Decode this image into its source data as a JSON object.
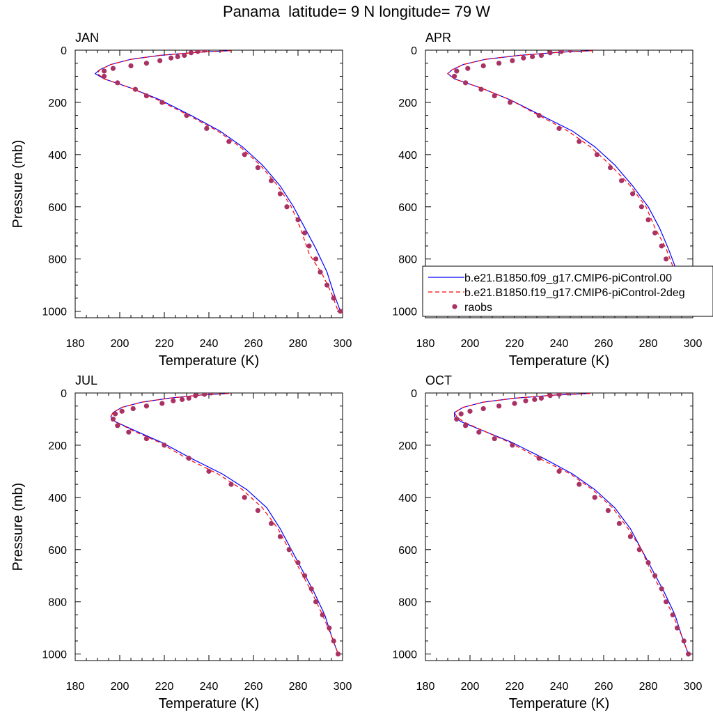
{
  "figure": {
    "title": "Panama  latitude= 9 N longitude= 79 W"
  },
  "chart_data": [
    {
      "type": "line",
      "panel_label": "JAN",
      "xlabel": "Temperature (K)",
      "ylabel": "Pressure (mb)",
      "xlim": [
        180,
        300
      ],
      "ylim": [
        1025,
        0
      ],
      "x_ticks": [
        180,
        200,
        220,
        240,
        260,
        280,
        300
      ],
      "y_ticks": [
        0,
        200,
        400,
        600,
        800,
        1000
      ],
      "series": [
        {
          "name": "b.e21.B1850.f09_g17.CMIP6-piControl.00",
          "style": "solid",
          "color": "#0000ff",
          "temperature": [
            250,
            235,
            218,
            205,
            196,
            191,
            189,
            193,
            205,
            218,
            232,
            245,
            255,
            264,
            272,
            278,
            283,
            288,
            293,
            296,
            299
          ],
          "pressure": [
            2,
            8,
            20,
            35,
            55,
            75,
            90,
            110,
            145,
            190,
            250,
            310,
            370,
            440,
            520,
            600,
            680,
            760,
            850,
            930,
            1000
          ]
        },
        {
          "name": "b.e21.B1850.f19_g17.CMIP6-piControl-2deg",
          "style": "dashed",
          "color": "#ff0000",
          "temperature": [
            250,
            235,
            218,
            205,
            196,
            191,
            190,
            193,
            205,
            217,
            231,
            244,
            254,
            263,
            271,
            277,
            281,
            285,
            291,
            295,
            298
          ],
          "pressure": [
            2,
            8,
            20,
            35,
            55,
            75,
            90,
            110,
            145,
            190,
            250,
            310,
            370,
            440,
            520,
            600,
            680,
            780,
            860,
            930,
            1000
          ]
        },
        {
          "name": "raobs",
          "style": "markers",
          "color": "#a83264",
          "temperature": [
            238,
            235,
            232,
            229,
            226,
            223,
            218,
            212,
            205,
            197,
            193,
            193,
            199,
            207,
            212,
            219,
            230,
            239,
            249,
            256,
            262,
            268,
            272,
            275,
            280,
            283,
            285,
            288,
            290,
            293,
            296,
            299
          ],
          "pressure": [
            0,
            5,
            10,
            20,
            25,
            30,
            40,
            50,
            60,
            70,
            80,
            100,
            125,
            150,
            175,
            200,
            250,
            300,
            350,
            400,
            450,
            500,
            550,
            600,
            650,
            700,
            750,
            800,
            850,
            900,
            950,
            1000
          ]
        }
      ]
    },
    {
      "type": "line",
      "panel_label": "APR",
      "xlabel": "Temperature (K)",
      "ylabel": "",
      "xlim": [
        180,
        300
      ],
      "ylim": [
        1025,
        0
      ],
      "x_ticks": [
        180,
        200,
        220,
        240,
        260,
        280,
        300
      ],
      "y_ticks": [
        0,
        200,
        400,
        600,
        800,
        1000
      ],
      "legend": {
        "position": "bottom-right"
      },
      "series": [
        {
          "name": "b.e21.B1850.f09_g17.CMIP6-piControl.00",
          "style": "solid",
          "color": "#0000ff",
          "temperature": [
            255,
            240,
            222,
            207,
            197,
            192,
            190,
            193,
            205,
            218,
            232,
            246,
            256,
            265,
            273,
            280,
            285,
            289,
            293,
            297,
            300
          ],
          "pressure": [
            2,
            8,
            20,
            35,
            55,
            75,
            90,
            110,
            145,
            190,
            250,
            310,
            370,
            440,
            520,
            600,
            680,
            760,
            850,
            930,
            1000
          ]
        },
        {
          "name": "b.e21.B1850.f19_g17.CMIP6-piControl-2deg",
          "style": "dashed",
          "color": "#ff0000",
          "temperature": [
            255,
            240,
            222,
            207,
            197,
            192,
            190,
            193,
            205,
            218,
            231,
            244,
            254,
            263,
            272,
            279,
            283,
            288,
            292,
            296,
            300
          ],
          "pressure": [
            2,
            8,
            20,
            35,
            55,
            75,
            90,
            110,
            145,
            190,
            250,
            310,
            370,
            440,
            520,
            600,
            680,
            760,
            850,
            930,
            1000
          ]
        },
        {
          "name": "raobs",
          "style": "markers",
          "color": "#a83264",
          "temperature": [
            245,
            241,
            236,
            232,
            228,
            224,
            219,
            213,
            206,
            199,
            194,
            193,
            198,
            205,
            211,
            218,
            231,
            240,
            249,
            257,
            263,
            268,
            273,
            277,
            280,
            283,
            286,
            288,
            291,
            294,
            297,
            300
          ],
          "pressure": [
            0,
            5,
            10,
            20,
            25,
            30,
            40,
            50,
            60,
            70,
            80,
            100,
            125,
            150,
            175,
            200,
            250,
            300,
            350,
            400,
            450,
            500,
            550,
            600,
            650,
            700,
            750,
            800,
            850,
            900,
            950,
            1000
          ]
        }
      ]
    },
    {
      "type": "line",
      "panel_label": "JUL",
      "xlabel": "Temperature (K)",
      "ylabel": "Pressure (mb)",
      "xlim": [
        180,
        300
      ],
      "ylim": [
        1025,
        0
      ],
      "x_ticks": [
        180,
        200,
        220,
        240,
        260,
        280,
        300
      ],
      "y_ticks": [
        0,
        200,
        400,
        600,
        800,
        1000
      ],
      "series": [
        {
          "name": "b.e21.B1850.f09_g17.CMIP6-piControl.00",
          "style": "solid",
          "color": "#0000ff",
          "temperature": [
            249,
            236,
            222,
            210,
            201,
            197,
            196,
            198,
            207,
            219,
            232,
            246,
            257,
            266,
            272,
            277,
            282,
            287,
            292,
            295,
            298
          ],
          "pressure": [
            2,
            8,
            20,
            35,
            55,
            75,
            90,
            110,
            145,
            190,
            250,
            310,
            370,
            440,
            520,
            600,
            680,
            760,
            850,
            930,
            1000
          ]
        },
        {
          "name": "b.e21.B1850.f19_g17.CMIP6-piControl-2deg",
          "style": "dashed",
          "color": "#ff0000",
          "temperature": [
            249,
            236,
            222,
            210,
            201,
            197,
            196,
            198,
            206,
            218,
            230,
            244,
            255,
            264,
            271,
            276,
            281,
            286,
            291,
            295,
            298
          ],
          "pressure": [
            2,
            8,
            20,
            35,
            55,
            75,
            90,
            110,
            145,
            190,
            250,
            310,
            370,
            440,
            520,
            600,
            680,
            760,
            850,
            930,
            1000
          ]
        },
        {
          "name": "raobs",
          "style": "markers",
          "color": "#a83264",
          "temperature": [
            241,
            238,
            234,
            231,
            228,
            224,
            219,
            212,
            206,
            201,
            198,
            197,
            199,
            204,
            212,
            220,
            231,
            240,
            250,
            256,
            262,
            268,
            272,
            276,
            280,
            283,
            286,
            288,
            291,
            294,
            296,
            298
          ],
          "pressure": [
            0,
            5,
            10,
            20,
            25,
            30,
            40,
            50,
            60,
            70,
            80,
            100,
            125,
            150,
            175,
            200,
            250,
            300,
            350,
            400,
            450,
            500,
            550,
            600,
            650,
            700,
            750,
            800,
            850,
            900,
            950,
            1000
          ]
        }
      ]
    },
    {
      "type": "line",
      "panel_label": "OCT",
      "xlabel": "Temperature (K)",
      "ylabel": "",
      "xlim": [
        180,
        300
      ],
      "ylim": [
        1025,
        0
      ],
      "x_ticks": [
        180,
        200,
        220,
        240,
        260,
        280,
        300
      ],
      "y_ticks": [
        0,
        200,
        400,
        600,
        800,
        1000
      ],
      "series": [
        {
          "name": "b.e21.B1850.f09_g17.CMIP6-piControl.00",
          "style": "solid",
          "color": "#0000ff",
          "temperature": [
            254,
            238,
            220,
            206,
            197,
            193,
            193,
            196,
            206,
            219,
            233,
            246,
            256,
            265,
            272,
            277,
            282,
            287,
            292,
            295,
            298
          ],
          "pressure": [
            2,
            8,
            20,
            35,
            55,
            75,
            90,
            110,
            145,
            190,
            250,
            310,
            370,
            440,
            520,
            600,
            680,
            760,
            850,
            930,
            1000
          ]
        },
        {
          "name": "b.e21.B1850.f19_g17.CMIP6-piControl-2deg",
          "style": "dashed",
          "color": "#ff0000",
          "temperature": [
            254,
            238,
            220,
            206,
            197,
            193,
            194,
            197,
            206,
            218,
            231,
            245,
            255,
            264,
            271,
            277,
            281,
            286,
            291,
            295,
            298
          ],
          "pressure": [
            2,
            8,
            20,
            35,
            55,
            75,
            90,
            110,
            145,
            190,
            250,
            310,
            370,
            440,
            520,
            600,
            680,
            760,
            850,
            930,
            1000
          ]
        },
        {
          "name": "raobs",
          "style": "markers",
          "color": "#a83264",
          "temperature": [
            244,
            240,
            236,
            232,
            229,
            225,
            220,
            213,
            206,
            200,
            196,
            194,
            198,
            204,
            211,
            219,
            231,
            240,
            249,
            256,
            262,
            267,
            272,
            276,
            280,
            283,
            286,
            288,
            291,
            293,
            296,
            298
          ],
          "pressure": [
            0,
            5,
            10,
            20,
            25,
            30,
            40,
            50,
            60,
            70,
            80,
            100,
            125,
            150,
            175,
            200,
            250,
            300,
            350,
            400,
            450,
            500,
            550,
            600,
            650,
            700,
            750,
            800,
            850,
            900,
            950,
            1000
          ]
        }
      ]
    }
  ]
}
